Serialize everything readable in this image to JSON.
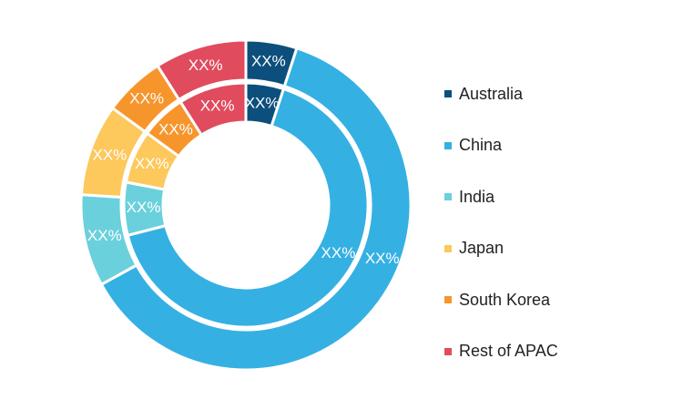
{
  "chart_data": {
    "type": "pie",
    "variant": "nested-donut",
    "categories": [
      "Australia",
      "China",
      "India",
      "Japan",
      "South Korea",
      "Rest of APAC"
    ],
    "colors": [
      "#0d4f7c",
      "#35b0e3",
      "#6ad0dc",
      "#fdc85c",
      "#f7952d",
      "#e14b5e"
    ],
    "series": [
      {
        "ring": "outer",
        "values": [
          5,
          62,
          9,
          9,
          6,
          9
        ],
        "labels": [
          "XX%",
          "XX%",
          "XX%",
          "XX%",
          "XX%",
          "XX%"
        ]
      },
      {
        "ring": "inner",
        "values": [
          5,
          66,
          7,
          7,
          6,
          9
        ],
        "labels": [
          "XX%",
          "XX%",
          "XX%",
          "XX%",
          "XX%",
          "XX%"
        ]
      }
    ],
    "legend_position": "right"
  }
}
